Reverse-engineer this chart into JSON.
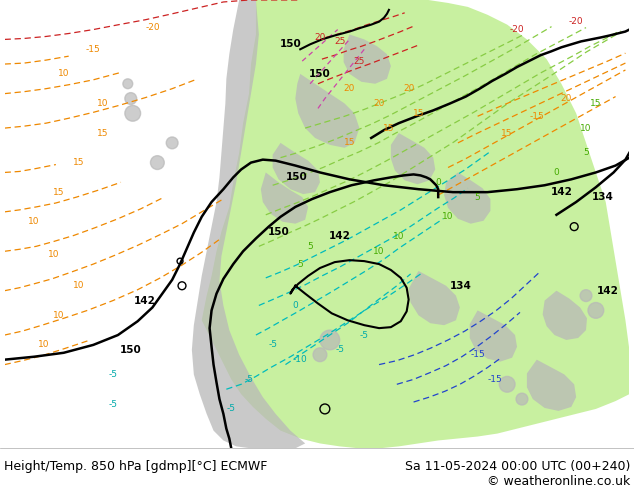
{
  "title_left": "Height/Temp. 850 hPa [gdmp][°C] ECMWF",
  "title_right": "Sa 11-05-2024 00:00 UTC (00+240)",
  "copyright": "© weatheronline.co.uk",
  "bg_color": "#ffffff",
  "bottom_text_color": "#000000",
  "copyright_color": "#000000",
  "fig_width": 6.34,
  "fig_height": 4.9,
  "dpi": 100,
  "font_size_bottom": 9.0,
  "font_size_copyright": 9.0,
  "map_facecolor": "#e8e8e8",
  "land_green": "#c8f0a0",
  "land_grey": "#b8b8b8",
  "ocean_color": "#e8e8e8"
}
